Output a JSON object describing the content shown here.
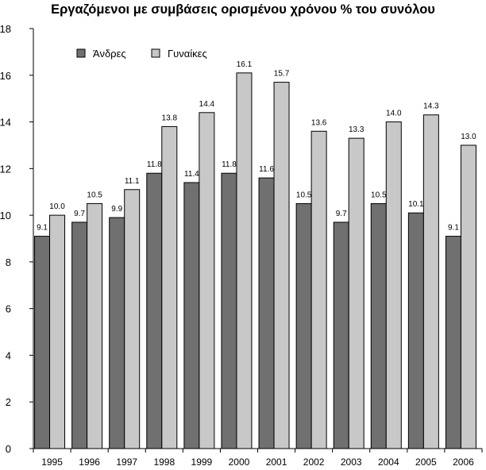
{
  "chart_data": {
    "type": "bar",
    "title": "Εργαζόμενοι με συμβάσεις ορισμένου χρόνου  % του συνόλου",
    "xlabel": "",
    "ylabel": "",
    "ylim": [
      0,
      18
    ],
    "y_ticks": [
      0,
      2,
      4,
      6,
      8,
      10,
      12,
      14,
      16,
      18
    ],
    "grid": false,
    "legend_position": "top-left",
    "categories": [
      "1995",
      "1996",
      "1997",
      "1998",
      "1999",
      "2000",
      "2001",
      "2002",
      "2003",
      "2004",
      "2005",
      "2006"
    ],
    "series": [
      {
        "name": "Άνδρες",
        "color": "#707070",
        "values": [
          9.1,
          9.7,
          9.9,
          11.8,
          11.4,
          11.8,
          11.6,
          10.5,
          9.7,
          10.5,
          10.1,
          9.1
        ],
        "labels": [
          "9.1",
          "9.7",
          "9.9",
          "11.8",
          "11.4",
          "11.8",
          "11.6",
          "10.5",
          "9.7",
          "10.5",
          "10.1",
          "9.1"
        ]
      },
      {
        "name": "Γυναίκες",
        "color": "#c8c8c8",
        "values": [
          10.0,
          10.5,
          11.1,
          13.8,
          14.4,
          16.1,
          15.7,
          13.6,
          13.3,
          14.0,
          14.3,
          13.0
        ],
        "labels": [
          "10.0",
          "10.5",
          "11.1",
          "13.8",
          "14.4",
          "16.1",
          "15.7",
          "13.6",
          "13.3",
          "14.0",
          "14.3",
          "13.0"
        ]
      }
    ]
  }
}
